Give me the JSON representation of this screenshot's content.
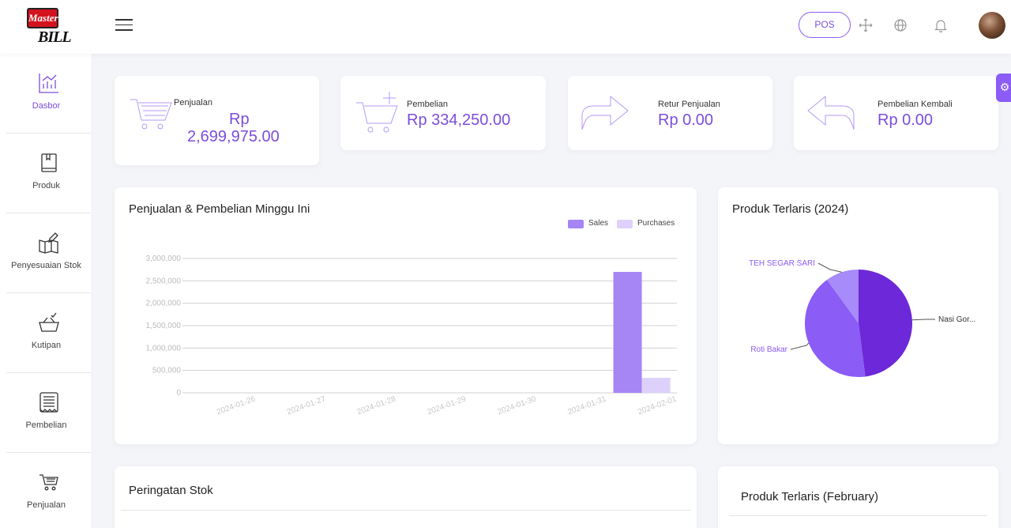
{
  "header": {
    "logo_top": "Master",
    "logo_bottom": "BILL",
    "pos_label": "POS"
  },
  "sidebar": {
    "items": [
      {
        "label": "Dasbor",
        "icon": "chart-icon",
        "active": true
      },
      {
        "label": "Produk",
        "icon": "book-icon"
      },
      {
        "label": "Penyesuaian Stok",
        "icon": "map-edit-icon"
      },
      {
        "label": "Kutipan",
        "icon": "basket-check-icon"
      },
      {
        "label": "Pembelian",
        "icon": "receipt-icon"
      },
      {
        "label": "Penjualan",
        "icon": "cart-icon"
      }
    ]
  },
  "stats": [
    {
      "label": "Penjualan",
      "value_line1": "Rp",
      "value_line2": "2,699,975.00",
      "icon": "cart-icon"
    },
    {
      "label": "Pembelian",
      "value": "Rp 334,250.00",
      "icon": "cart-plus-icon"
    },
    {
      "label": "Retur Penjualan",
      "value": "Rp 0.00",
      "icon": "arrow-right-icon"
    },
    {
      "label": "Pembelian Kembali",
      "value": "Rp 0.00",
      "icon": "arrow-left-icon"
    }
  ],
  "weekly_chart": {
    "title": "Penjualan & Pembelian Minggu Ini"
  },
  "pie_chart": {
    "title": "Produk Terlaris (2024)"
  },
  "stock_alert": {
    "title": "Peringatan Stok"
  },
  "top_month": {
    "title": "Produk Terlaris (February)"
  },
  "chart_data": [
    {
      "type": "bar",
      "title": "Penjualan & Pembelian Minggu Ini",
      "categories": [
        "2024-01-26",
        "2024-01-27",
        "2024-01-28",
        "2024-01-29",
        "2024-01-30",
        "2024-01-31",
        "2024-02-01"
      ],
      "series": [
        {
          "name": "Sales",
          "color": "#a685f5",
          "values": [
            0,
            0,
            0,
            0,
            0,
            0,
            2699975
          ]
        },
        {
          "name": "Purchases",
          "color": "#ddd1fb",
          "values": [
            0,
            0,
            0,
            0,
            0,
            0,
            334250
          ]
        }
      ],
      "yticks": [
        "3,000,000",
        "2,500,000",
        "2,000,000",
        "1,500,000",
        "1,000,000",
        "500,000",
        "0"
      ],
      "ylim": [
        0,
        3000000
      ],
      "legend": "top-right",
      "grid": true
    },
    {
      "type": "pie",
      "title": "Produk Terlaris (2024)",
      "slices": [
        {
          "label": "Nasi Gor...",
          "value": 48,
          "color": "#6d28d9"
        },
        {
          "label": "Roti Bakar",
          "value": 42,
          "color": "#8b5cf6"
        },
        {
          "label": "TEH SEGAR SARI",
          "value": 10,
          "color": "#a78bfa"
        }
      ]
    }
  ]
}
